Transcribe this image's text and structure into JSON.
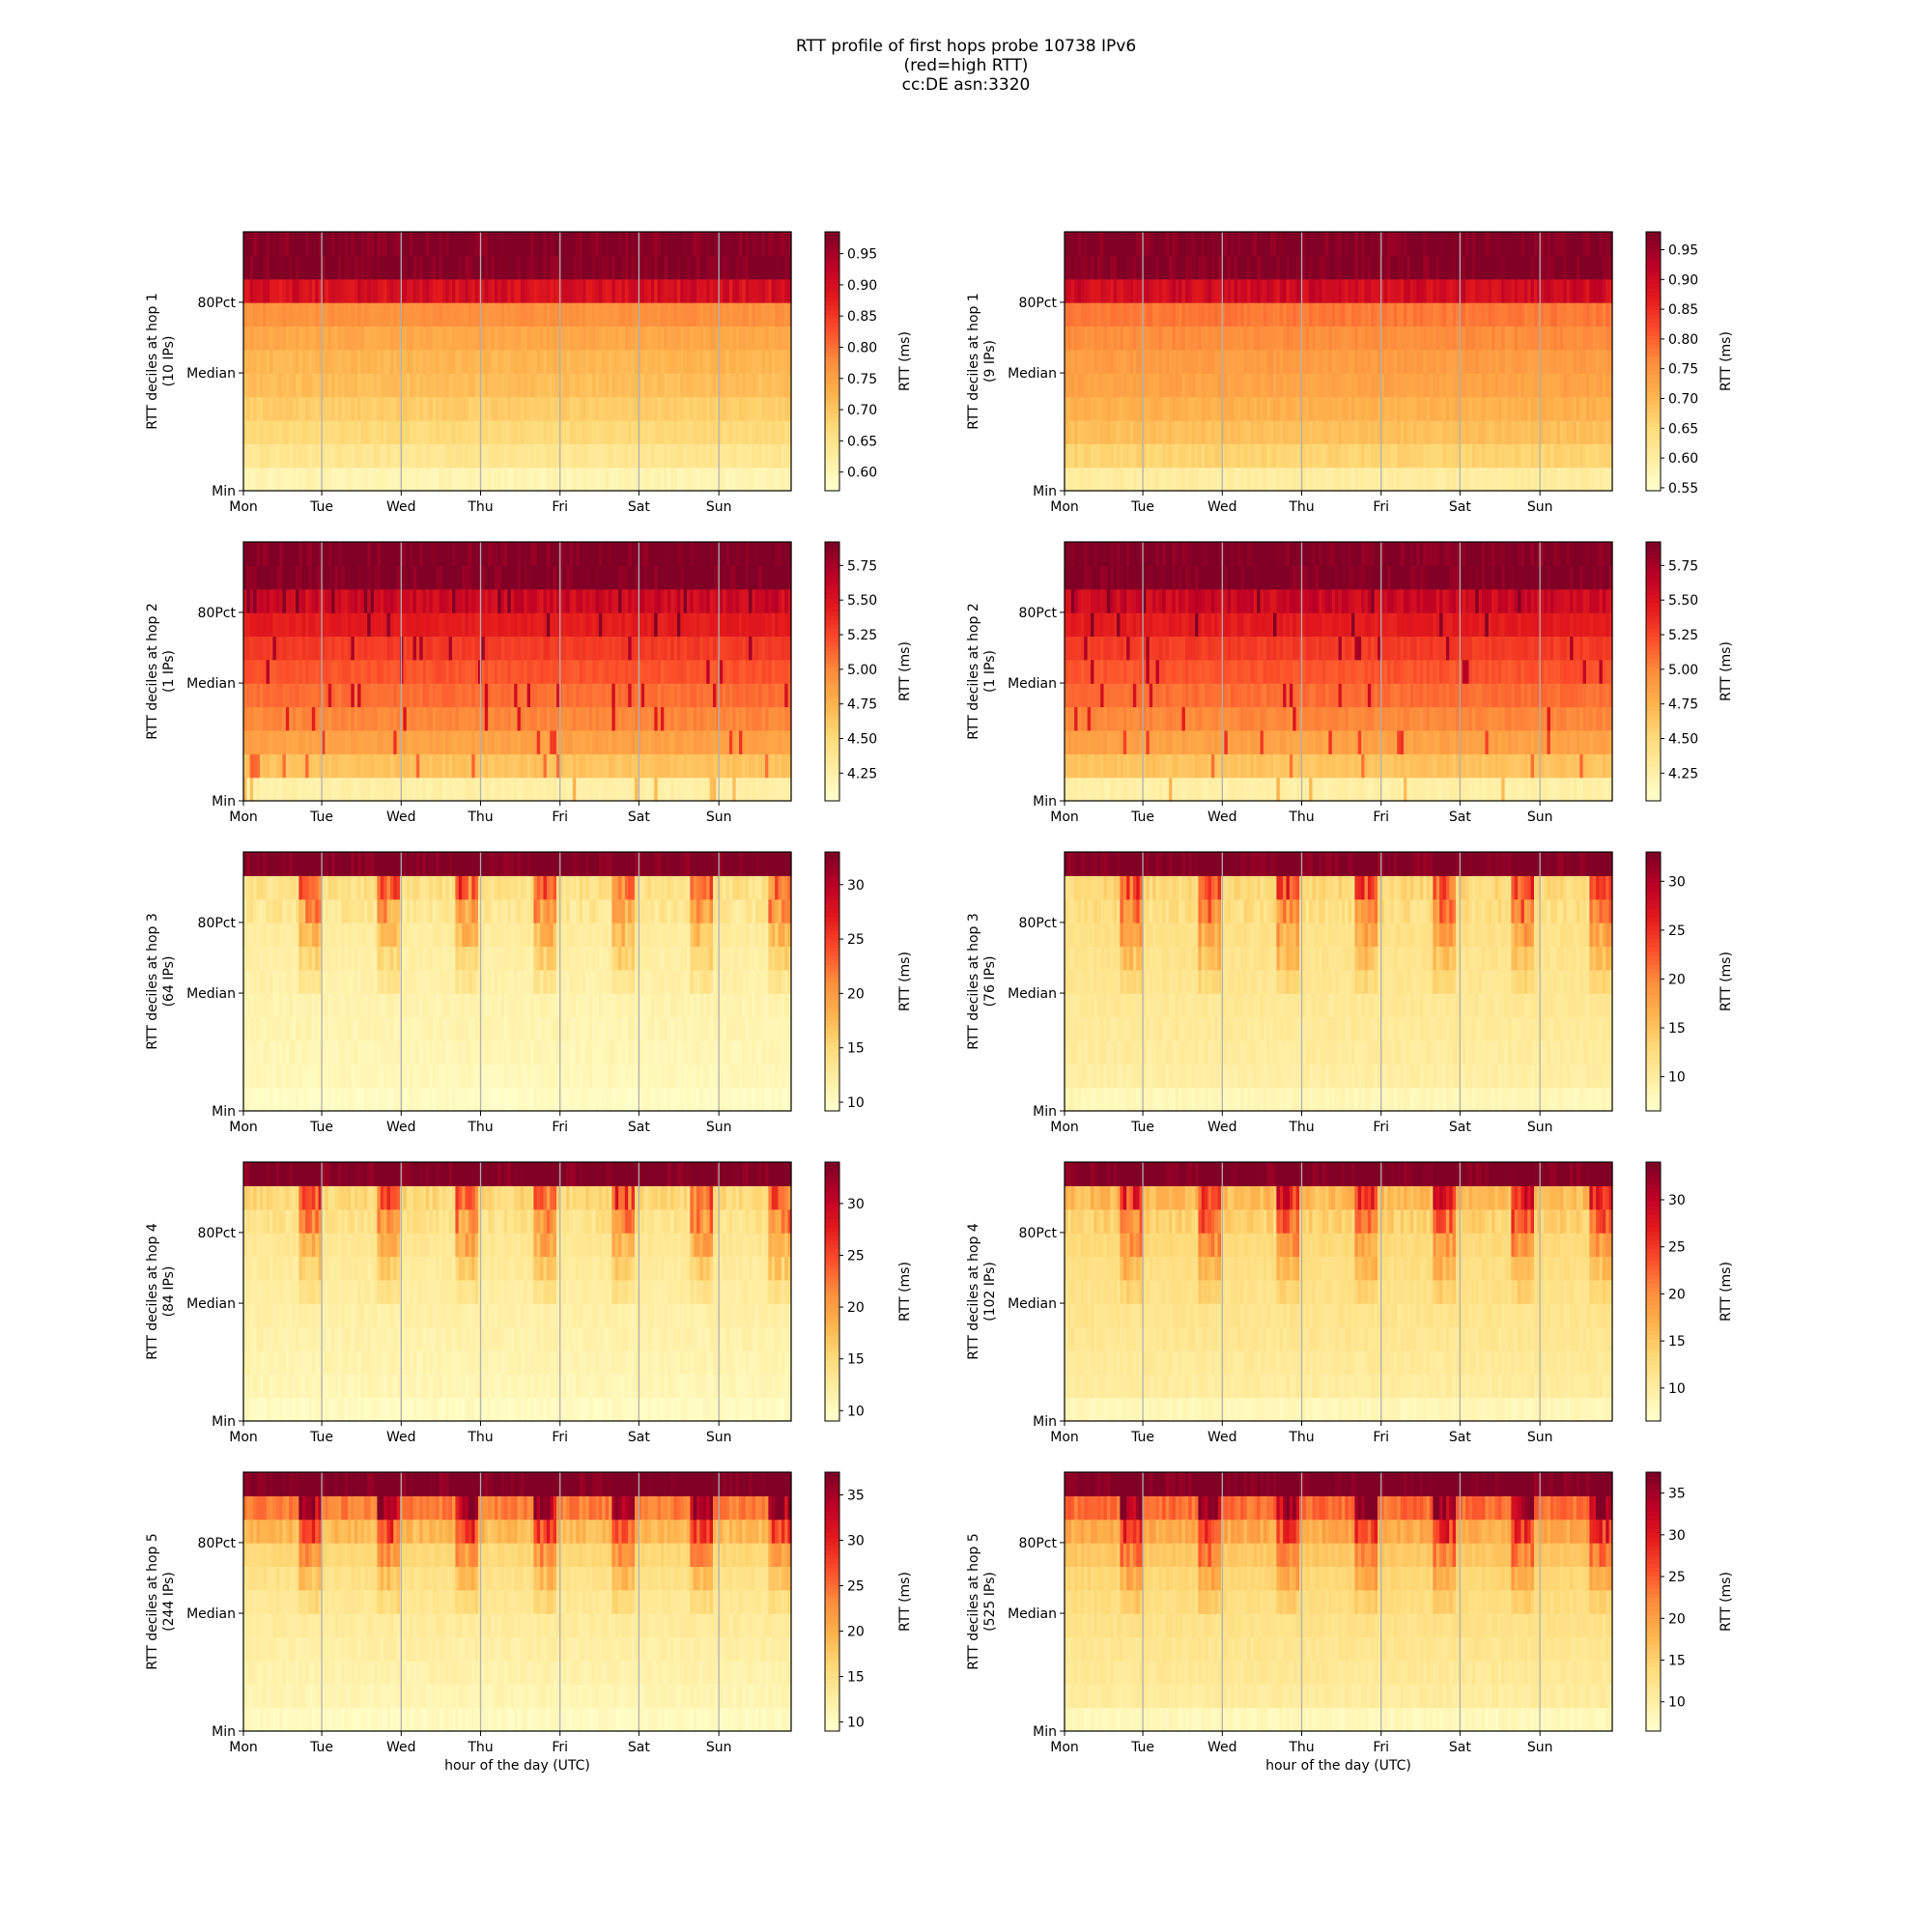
{
  "title": [
    "RTT profile of first hops probe 10738 IPv6",
    "(red=high RTT)",
    "cc:DE asn:3320"
  ],
  "colors": {
    "low": "#ffffcc",
    "mid": "#fd8d3c",
    "high": "#800026",
    "grid": "#b0b0b0"
  },
  "chart_data": [
    {
      "type": "heatmap",
      "hop": 1,
      "ylabel": "RTT deciles at hop 1",
      "sublabel": "(10 IPs)",
      "cbar_label": "RTT (ms)",
      "cbar_ticks": [
        "0.60",
        "0.65",
        "0.70",
        "0.75",
        "0.80",
        "0.85",
        "0.90",
        "0.95"
      ],
      "vmin": 0.57,
      "vmax": 0.985,
      "x_ticks": [
        "Mon",
        "Tue",
        "Wed",
        "Thu",
        "Fri",
        "Sat",
        "Sun"
      ],
      "y_ticks": [
        "Min",
        "Median",
        "80Pct"
      ],
      "xlabel": "",
      "profile": [
        0.6,
        0.64,
        0.67,
        0.69,
        0.71,
        0.72,
        0.74,
        0.77,
        0.9,
        0.985,
        0.985
      ]
    },
    {
      "type": "heatmap",
      "hop": 1,
      "ylabel": "RTT deciles at hop 1",
      "sublabel": "(9 IPs)",
      "cbar_label": "RTT (ms)",
      "cbar_ticks": [
        "0.55",
        "0.60",
        "0.65",
        "0.70",
        "0.75",
        "0.80",
        "0.85",
        "0.90",
        "0.95"
      ],
      "vmin": 0.545,
      "vmax": 0.98,
      "x_ticks": [
        "Mon",
        "Tue",
        "Wed",
        "Thu",
        "Fri",
        "Sat",
        "Sun"
      ],
      "y_ticks": [
        "Min",
        "Median",
        "80Pct"
      ],
      "xlabel": "",
      "profile": [
        0.6,
        0.66,
        0.69,
        0.71,
        0.73,
        0.74,
        0.76,
        0.78,
        0.9,
        0.98,
        0.98
      ]
    },
    {
      "type": "heatmap",
      "hop": 2,
      "ylabel": "RTT deciles at hop 2",
      "sublabel": "(1 IPs)",
      "cbar_label": "RTT (ms)",
      "cbar_ticks": [
        "4.25",
        "4.50",
        "4.75",
        "5.00",
        "5.25",
        "5.50",
        "5.75"
      ],
      "vmin": 4.05,
      "vmax": 5.92,
      "x_ticks": [
        "Mon",
        "Tue",
        "Wed",
        "Thu",
        "Fri",
        "Sat",
        "Sun"
      ],
      "y_ticks": [
        "Min",
        "Median",
        "80Pct"
      ],
      "xlabel": "",
      "profile": [
        4.25,
        4.65,
        4.85,
        5.0,
        5.1,
        5.2,
        5.3,
        5.45,
        5.6,
        5.92,
        5.92
      ]
    },
    {
      "type": "heatmap",
      "hop": 2,
      "ylabel": "RTT deciles at hop 2",
      "sublabel": "(1 IPs)",
      "cbar_label": "RTT (ms)",
      "cbar_ticks": [
        "4.25",
        "4.50",
        "4.75",
        "5.00",
        "5.25",
        "5.50",
        "5.75"
      ],
      "vmin": 4.05,
      "vmax": 5.92,
      "x_ticks": [
        "Mon",
        "Tue",
        "Wed",
        "Thu",
        "Fri",
        "Sat",
        "Sun"
      ],
      "y_ticks": [
        "Min",
        "Median",
        "80Pct"
      ],
      "xlabel": "",
      "profile": [
        4.25,
        4.65,
        4.85,
        5.0,
        5.1,
        5.2,
        5.3,
        5.45,
        5.6,
        5.92,
        5.92
      ]
    },
    {
      "type": "heatmap",
      "hop": 3,
      "ylabel": "RTT deciles at hop 3",
      "sublabel": "(64 IPs)",
      "cbar_label": "RTT (ms)",
      "cbar_ticks": [
        "10",
        "15",
        "20",
        "25",
        "30"
      ],
      "vmin": 9.2,
      "vmax": 33,
      "x_ticks": [
        "Mon",
        "Tue",
        "Wed",
        "Thu",
        "Fri",
        "Sat",
        "Sun"
      ],
      "y_ticks": [
        "Min",
        "Median",
        "80Pct"
      ],
      "xlabel": "",
      "profile": [
        9.8,
        10.5,
        10.8,
        11.0,
        11.2,
        11.5,
        11.8,
        12.3,
        13.0,
        14.0,
        33
      ]
    },
    {
      "type": "heatmap",
      "hop": 3,
      "ylabel": "RTT deciles at hop 3",
      "sublabel": "(76 IPs)",
      "cbar_label": "RTT (ms)",
      "cbar_ticks": [
        "10",
        "15",
        "20",
        "25",
        "30"
      ],
      "vmin": 6.5,
      "vmax": 33,
      "x_ticks": [
        "Mon",
        "Tue",
        "Wed",
        "Thu",
        "Fri",
        "Sat",
        "Sun"
      ],
      "y_ticks": [
        "Min",
        "Median",
        "80Pct"
      ],
      "xlabel": "",
      "profile": [
        8.0,
        9.5,
        10.0,
        10.3,
        10.6,
        11.0,
        11.3,
        11.7,
        12.2,
        13.0,
        33
      ]
    },
    {
      "type": "heatmap",
      "hop": 4,
      "ylabel": "RTT deciles at hop 4",
      "sublabel": "(84 IPs)",
      "cbar_label": "RTT (ms)",
      "cbar_ticks": [
        "10",
        "15",
        "20",
        "25",
        "30"
      ],
      "vmin": 9.0,
      "vmax": 34,
      "x_ticks": [
        "Mon",
        "Tue",
        "Wed",
        "Thu",
        "Fri",
        "Sat",
        "Sun"
      ],
      "y_ticks": [
        "Min",
        "Median",
        "80Pct"
      ],
      "xlabel": "",
      "profile": [
        9.8,
        10.6,
        11.0,
        11.3,
        11.6,
        12.0,
        12.4,
        13.0,
        13.8,
        15.0,
        34
      ]
    },
    {
      "type": "heatmap",
      "hop": 4,
      "ylabel": "RTT deciles at hop 4",
      "sublabel": "(102 IPs)",
      "cbar_label": "RTT (ms)",
      "cbar_ticks": [
        "10",
        "15",
        "20",
        "25",
        "30"
      ],
      "vmin": 6.5,
      "vmax": 34,
      "x_ticks": [
        "Mon",
        "Tue",
        "Wed",
        "Thu",
        "Fri",
        "Sat",
        "Sun"
      ],
      "y_ticks": [
        "Min",
        "Median",
        "80Pct"
      ],
      "xlabel": "",
      "profile": [
        8.0,
        10.0,
        10.5,
        11.0,
        11.4,
        11.8,
        12.3,
        13.0,
        14.0,
        16.0,
        34
      ]
    },
    {
      "type": "heatmap",
      "hop": 5,
      "ylabel": "RTT deciles at hop 5",
      "sublabel": "(244 IPs)",
      "cbar_label": "RTT (ms)",
      "cbar_ticks": [
        "10",
        "15",
        "20",
        "25",
        "30",
        "35"
      ],
      "vmin": 9.0,
      "vmax": 37.5,
      "x_ticks": [
        "Mon",
        "Tue",
        "Wed",
        "Thu",
        "Fri",
        "Sat",
        "Sun"
      ],
      "y_ticks": [
        "Min",
        "Median",
        "80Pct"
      ],
      "xlabel": "hour of the day (UTC)",
      "profile": [
        10.0,
        11.0,
        11.6,
        12.2,
        12.8,
        13.5,
        14.5,
        16.0,
        19.0,
        24.0,
        37.5
      ]
    },
    {
      "type": "heatmap",
      "hop": 5,
      "ylabel": "RTT deciles at hop 5",
      "sublabel": "(525 IPs)",
      "cbar_label": "RTT (ms)",
      "cbar_ticks": [
        "10",
        "15",
        "20",
        "25",
        "30",
        "35"
      ],
      "vmin": 6.5,
      "vmax": 37.5,
      "x_ticks": [
        "Mon",
        "Tue",
        "Wed",
        "Thu",
        "Fri",
        "Sat",
        "Sun"
      ],
      "y_ticks": [
        "Min",
        "Median",
        "80Pct"
      ],
      "xlabel": "hour of the day (UTC)",
      "profile": [
        8.0,
        10.5,
        11.2,
        11.8,
        12.5,
        13.3,
        14.3,
        16.0,
        19.0,
        24.0,
        37.5
      ]
    }
  ]
}
